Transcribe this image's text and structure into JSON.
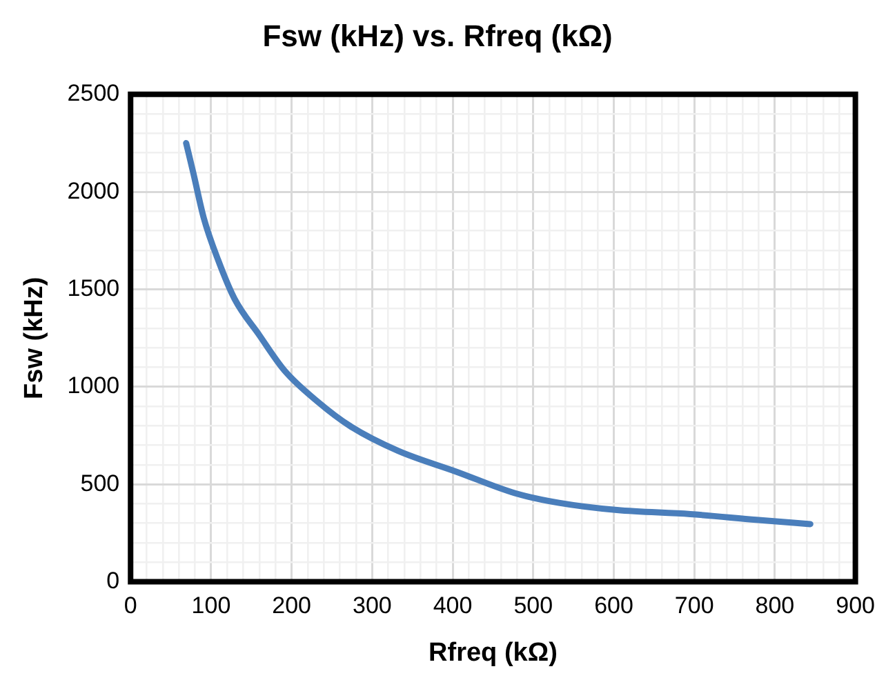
{
  "chart_data": {
    "type": "line",
    "title": "Fsw (kHz) vs. Rfreq (kΩ)",
    "xlabel": "Rfreq (kΩ)",
    "ylabel": "Fsw (kHz)",
    "series": [
      {
        "color": "#4a7ebb",
        "x": [
          69,
          78,
          91,
          109,
          129,
          160,
          191,
          232,
          274,
          332,
          405,
          477,
          532,
          604,
          695,
          777,
          844
        ],
        "values": [
          2250,
          2095,
          1864,
          1647,
          1452,
          1264,
          1084,
          925,
          795,
          672,
          564,
          455,
          405,
          368,
          347,
          318,
          296
        ]
      }
    ],
    "xlim": [
      0,
      900
    ],
    "ylim": [
      0,
      2500
    ],
    "xticks": [
      0,
      {
        "value": 20,
        "label": null
      },
      {
        "value": 40,
        "label": null
      },
      {
        "value": 60,
        "label": null
      },
      {
        "value": 80,
        "label": null
      },
      100,
      {
        "value": 120,
        "label": null
      },
      {
        "value": 140,
        "label": null
      },
      {
        "value": 160,
        "label": null
      },
      {
        "value": 180,
        "label": null
      },
      200,
      {
        "value": 220,
        "label": null
      },
      {
        "value": 240,
        "label": null
      },
      {
        "value": 260,
        "label": null
      },
      {
        "value": 280,
        "label": null
      },
      300,
      {
        "value": 320,
        "label": null
      },
      {
        "value": 340,
        "label": null
      },
      {
        "value": 360,
        "label": null
      },
      {
        "value": 380,
        "label": null
      },
      400,
      {
        "value": 420,
        "label": null
      },
      {
        "value": 440,
        "label": null
      },
      {
        "value": 460,
        "label": null
      },
      {
        "value": 480,
        "label": null
      },
      500,
      {
        "value": 520,
        "label": null
      },
      {
        "value": 540,
        "label": null
      },
      {
        "value": 560,
        "label": null
      },
      {
        "value": 580,
        "label": null
      },
      600,
      {
        "value": 620,
        "label": null
      },
      {
        "value": 640,
        "label": null
      },
      {
        "value": 660,
        "label": null
      },
      {
        "value": 680,
        "label": null
      },
      700,
      {
        "value": 720,
        "label": null
      },
      {
        "value": 740,
        "label": null
      },
      {
        "value": 760,
        "label": null
      },
      {
        "value": 780,
        "label": null
      },
      800,
      {
        "value": 820,
        "label": null
      },
      {
        "value": 840,
        "label": null
      },
      {
        "value": 860,
        "label": null
      },
      {
        "value": 880,
        "label": null
      },
      900
    ],
    "yticks": [
      0,
      {
        "value": 100,
        "label": null
      },
      {
        "value": 200,
        "label": null
      },
      {
        "value": 300,
        "label": null
      },
      {
        "value": 400,
        "label": null
      },
      500,
      {
        "value": 600,
        "label": null
      },
      {
        "value": 700,
        "label": null
      },
      {
        "value": 800,
        "label": null
      },
      {
        "value": 900,
        "label": null
      },
      1000,
      {
        "value": 1100,
        "label": null
      },
      {
        "value": 1200,
        "label": null
      },
      {
        "value": 1300,
        "label": null
      },
      {
        "value": 1400,
        "label": null
      },
      1500,
      {
        "value": 1600,
        "label": null
      },
      {
        "value": 1700,
        "label": null
      },
      {
        "value": 1800,
        "label": null
      },
      {
        "value": 1900,
        "label": null
      },
      2000,
      {
        "value": 2100,
        "label": null
      },
      {
        "value": 2200,
        "label": null
      },
      {
        "value": 2300,
        "label": null
      },
      {
        "value": 2400,
        "label": null
      },
      2500
    ],
    "grid": true,
    "marker": "none",
    "line_style": "solid",
    "legend": false
  }
}
